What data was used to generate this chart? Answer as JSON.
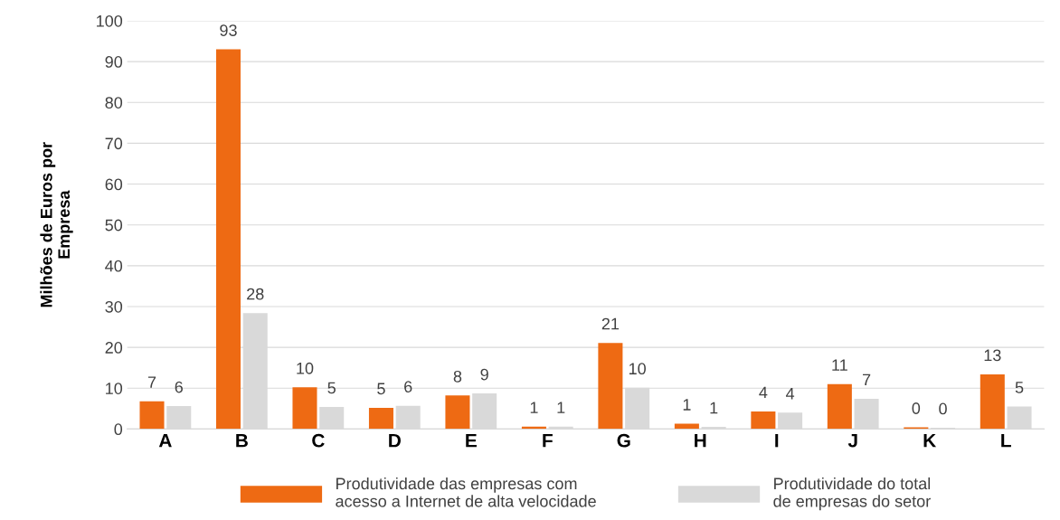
{
  "chart_data": {
    "type": "bar",
    "ylabel": "Milhões de Euros por\nEmpresa",
    "categories": [
      "A",
      "B",
      "C",
      "D",
      "E",
      "F",
      "G",
      "H",
      "I",
      "J",
      "K",
      "L"
    ],
    "series": [
      {
        "name": "Produtividade das empresas com\nacesso a Internet de alta velocidade",
        "color": "#ee6a13",
        "values": [
          6.8,
          93,
          10.2,
          5.2,
          8.2,
          0.6,
          21.1,
          1.3,
          4.3,
          11,
          0.4,
          13.4
        ],
        "value_labels": [
          "7",
          "93",
          "10",
          "5",
          "8",
          "1",
          "21",
          "1",
          "4",
          "11",
          "0",
          "13"
        ]
      },
      {
        "name": "Produtividade do total\nde empresas do setor",
        "color": "#d9d9d9",
        "values": [
          5.6,
          28.4,
          5.4,
          5.7,
          8.7,
          0.6,
          10.1,
          0.5,
          4.0,
          7.4,
          0.3,
          5.5
        ],
        "value_labels": [
          "6",
          "28",
          "5",
          "6",
          "9",
          "1",
          "10",
          "1",
          "4",
          "7",
          "0",
          "5"
        ]
      }
    ],
    "ylim": [
      0,
      100
    ],
    "yticks": [
      0,
      10,
      20,
      30,
      40,
      50,
      60,
      70,
      80,
      90,
      100
    ],
    "grid": "y",
    "legend": "bottom"
  }
}
